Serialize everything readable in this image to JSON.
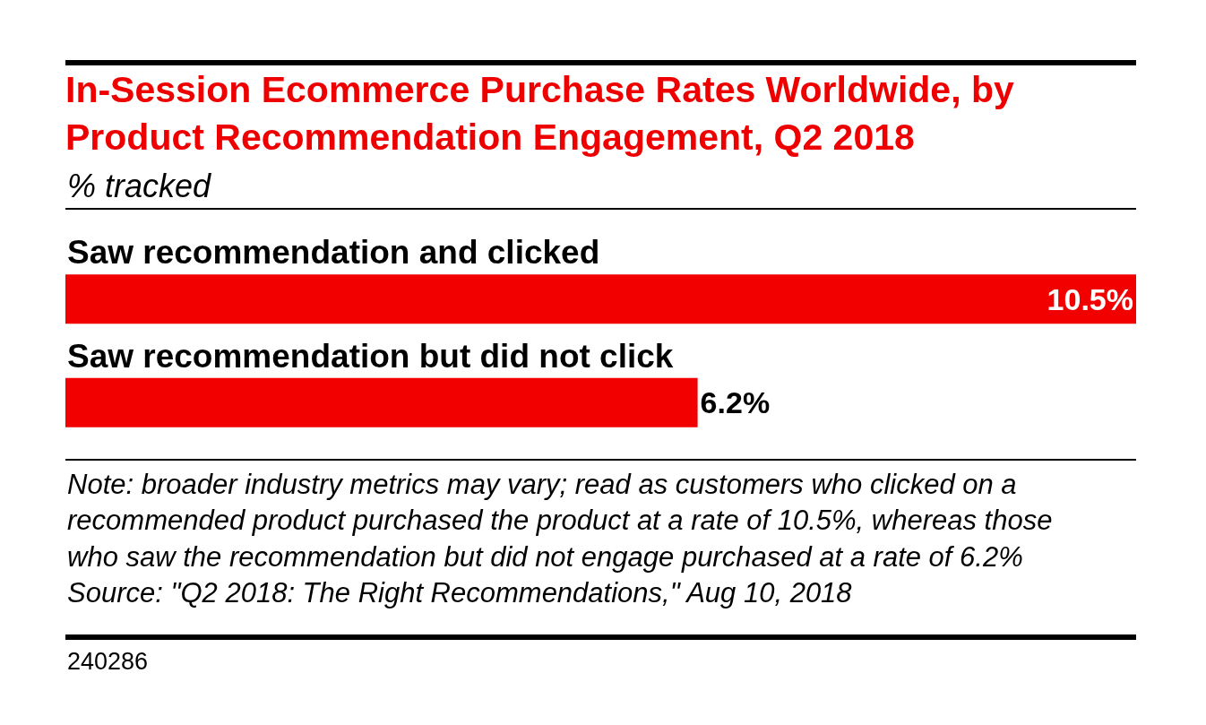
{
  "chart_data": {
    "type": "bar",
    "orientation": "horizontal",
    "title": "In-Session Ecommerce Purchase Rates Worldwide, by Product Recommendation Engagement, Q2 2018",
    "subtitle": "% tracked",
    "categories": [
      "Saw recommendation and clicked",
      "Saw recommendation but did not click"
    ],
    "values": [
      10.5,
      6.2
    ],
    "value_labels": [
      "10.5%",
      "6.2%"
    ],
    "color": "#f20000",
    "annotations": [
      "Note: broader industry metrics may vary; read as customers who clicked on a recommended product purchased the product at a rate of 10.5%, whereas those who saw the recommendation but did not engage purchased at a rate of 6.2%",
      "Source: \"Q2 2018: The Right Recommendations,\" Aug 10, 2018",
      "240286"
    ]
  }
}
